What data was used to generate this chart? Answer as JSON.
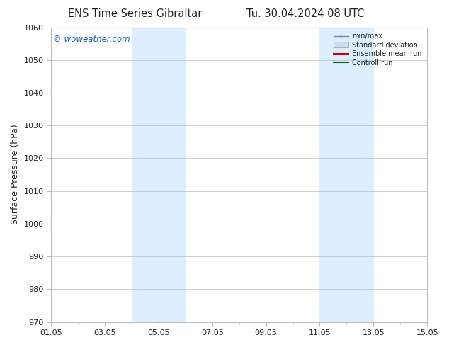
{
  "title_left": "ENS Time Series Gibraltar",
  "title_right": "Tu. 30.04.2024 08 UTC",
  "ylabel": "Surface Pressure (hPa)",
  "ylim": [
    970,
    1060
  ],
  "yticks": [
    970,
    980,
    990,
    1000,
    1010,
    1020,
    1030,
    1040,
    1050,
    1060
  ],
  "xlim": [
    0,
    14
  ],
  "xtick_labels": [
    "01.05",
    "03.05",
    "05.05",
    "07.05",
    "09.05",
    "11.05",
    "13.05",
    "15.05"
  ],
  "xtick_positions": [
    0,
    2,
    4,
    6,
    8,
    10,
    12,
    14
  ],
  "shaded_bands": [
    {
      "xmin": 3,
      "xmax": 5,
      "color": "#ddeeff"
    },
    {
      "xmin": 10,
      "xmax": 12,
      "color": "#ddeeff"
    }
  ],
  "watermark": "© woweather.com",
  "watermark_color": "#1a5fb4",
  "legend_items": [
    {
      "label": "min/max",
      "color": "#888888",
      "type": "errorbar"
    },
    {
      "label": "Standard deviation",
      "color": "#ccddf0",
      "type": "band"
    },
    {
      "label": "Ensemble mean run",
      "color": "#cc0000",
      "type": "line"
    },
    {
      "label": "Controll run",
      "color": "#006600",
      "type": "line"
    }
  ],
  "bg_color": "#ffffff",
  "plot_bg_color": "#ffffff",
  "grid_color": "#bbbbbb",
  "font_color": "#222222",
  "title_fontsize": 10.5,
  "tick_fontsize": 8,
  "ylabel_fontsize": 9
}
